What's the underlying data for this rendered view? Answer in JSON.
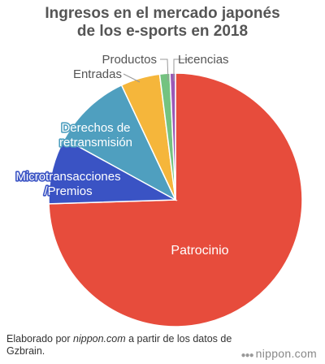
{
  "title_lines": [
    "Ingresos en el mercado japonés",
    "de los e-sports en 2018"
  ],
  "chart_data": {
    "type": "pie",
    "slices": [
      {
        "name": "Patrocinio",
        "value": 74.5,
        "color": "#e74c3c",
        "label_lines": [
          "Patrocinio"
        ]
      },
      {
        "name": "Microtransacciones/Premios",
        "value": 8.5,
        "color": "#3a53c4",
        "label_lines": [
          "Microtransacciones",
          "/Premios"
        ]
      },
      {
        "name": "Derechos de retransmisión",
        "value": 10.0,
        "color": "#4f9fbf",
        "label_lines": [
          "Derechos de",
          "retransmisión"
        ]
      },
      {
        "name": "Entradas",
        "value": 5.0,
        "color": "#f5b63b",
        "label_lines": [
          "Entradas"
        ]
      },
      {
        "name": "Productos",
        "value": 1.3,
        "color": "#74c380",
        "label_lines": [
          "Productos"
        ]
      },
      {
        "name": "Licencias",
        "value": 0.7,
        "color": "#9b59b6",
        "label_lines": [
          "Licencias"
        ]
      }
    ]
  },
  "footer": {
    "prefix": "Elaborado por ",
    "source_site": "nippon.com",
    "suffix": " a partir de los datos de Gzbrain."
  },
  "logo": {
    "text": "nippon.com",
    "dots": "●●●"
  },
  "colors": {
    "title": "#555555",
    "label_outline_blue": "#3a53c4",
    "label_outline_teal": "#4f9fbf"
  }
}
